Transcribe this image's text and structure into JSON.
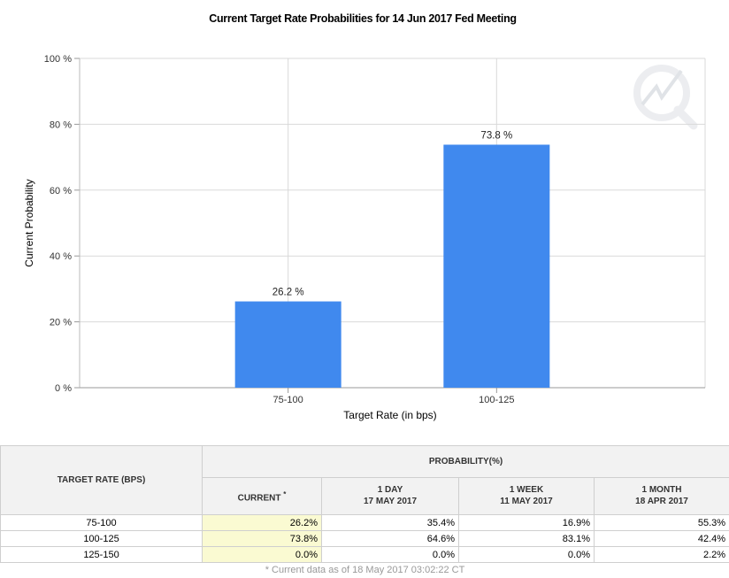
{
  "chart_data": {
    "type": "bar",
    "title": "Current Target Rate Probabilities for 14 Jun 2017 Fed Meeting",
    "categories": [
      "75-100",
      "100-125"
    ],
    "values": [
      26.2,
      73.8
    ],
    "data_labels": [
      "26.2 %",
      "73.8 %"
    ],
    "xlabel": "Target Rate (in bps)",
    "ylabel": "Current Probability",
    "ylim": [
      0,
      100
    ],
    "yticks": [
      0,
      20,
      40,
      60,
      80,
      100
    ],
    "ytick_labels": [
      "0 %",
      "20 %",
      "40 %",
      "60 %",
      "80 %",
      "100 %"
    ],
    "bar_color": "#4089ee",
    "grid": true,
    "legend": "none"
  },
  "table": {
    "rate_header": "TARGET RATE (BPS)",
    "group_header": "PROBABILITY(%)",
    "columns": [
      {
        "line1": "CURRENT",
        "line2": "",
        "mark": "*"
      },
      {
        "line1": "1 DAY",
        "line2": "17 MAY 2017",
        "mark": ""
      },
      {
        "line1": "1 WEEK",
        "line2": "11 MAY 2017",
        "mark": ""
      },
      {
        "line1": "1 MONTH",
        "line2": "18 APR 2017",
        "mark": ""
      }
    ],
    "rows": [
      {
        "rate": "75-100",
        "values": [
          "26.2%",
          "35.4%",
          "16.9%",
          "55.3%"
        ]
      },
      {
        "rate": "100-125",
        "values": [
          "73.8%",
          "64.6%",
          "83.1%",
          "42.4%"
        ]
      },
      {
        "rate": "125-150",
        "values": [
          "0.0%",
          "0.0%",
          "0.0%",
          "2.2%"
        ]
      }
    ],
    "footnote": "* Current data as of 18 May 2017 03:02:22 CT"
  },
  "colors": {
    "highlight": "#fafad2",
    "grid": "#d9d9d9"
  }
}
